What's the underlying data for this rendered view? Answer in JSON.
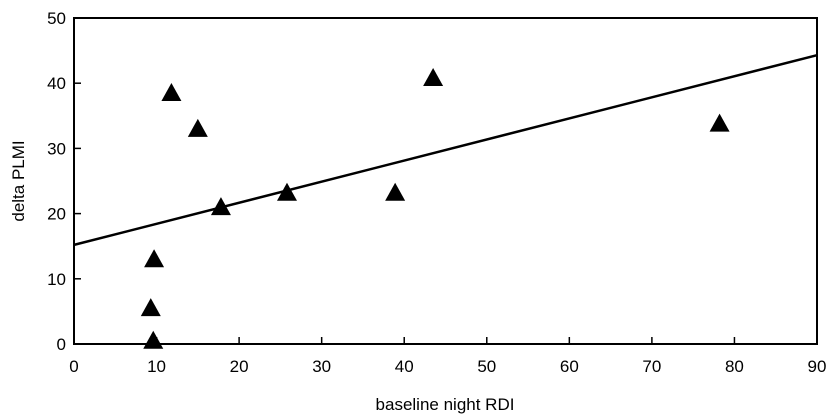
{
  "chart_data": {
    "type": "scatter",
    "title": "",
    "xlabel": "baseline night RDI",
    "ylabel": "delta PLMI",
    "xlim": [
      0,
      90
    ],
    "ylim": [
      0,
      50
    ],
    "x_ticks": [
      "0",
      "10",
      "20",
      "30",
      "40",
      "50",
      "60",
      "70",
      "80",
      "90"
    ],
    "y_ticks": [
      "0",
      "10",
      "20",
      "30",
      "40",
      "50"
    ],
    "grid": false,
    "marker": "triangle",
    "marker_color": "#000000",
    "series": [
      {
        "points": [
          {
            "x": 9.6,
            "y": 0.5
          },
          {
            "x": 9.3,
            "y": 5.5
          },
          {
            "x": 9.7,
            "y": 13
          },
          {
            "x": 11.8,
            "y": 38.5
          },
          {
            "x": 15.0,
            "y": 33
          },
          {
            "x": 17.8,
            "y": 21
          },
          {
            "x": 25.8,
            "y": 23.2
          },
          {
            "x": 38.9,
            "y": 23.2
          },
          {
            "x": 43.5,
            "y": 40.8
          },
          {
            "x": 78.2,
            "y": 33.8
          }
        ]
      }
    ],
    "trend_line": {
      "x": [
        0,
        90
      ],
      "y": [
        15.2,
        44.3
      ]
    }
  }
}
